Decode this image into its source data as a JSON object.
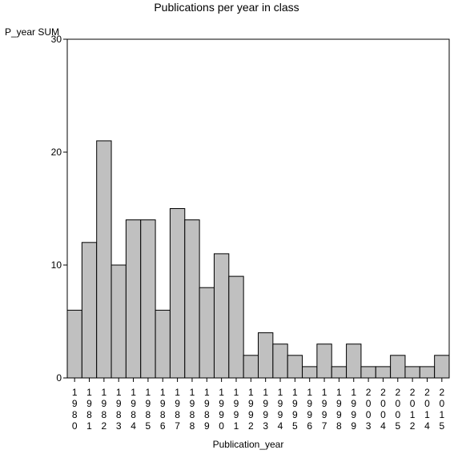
{
  "chart_data": {
    "type": "bar",
    "title": "Publications per year in class",
    "xlabel": "Publication_year",
    "ylabel": "P_year SUM",
    "ylim": [
      0,
      30
    ],
    "yticks": [
      0,
      10,
      20,
      30
    ],
    "grid": false,
    "categories": [
      "1980",
      "1981",
      "1982",
      "1983",
      "1984",
      "1985",
      "1986",
      "1987",
      "1988",
      "1989",
      "1990",
      "1991",
      "1992",
      "1993",
      "1994",
      "1995",
      "1996",
      "1997",
      "1998",
      "1999",
      "2003",
      "2004",
      "2005",
      "2012",
      "2014",
      "2015"
    ],
    "values": [
      6,
      12,
      21,
      10,
      14,
      14,
      6,
      15,
      14,
      8,
      11,
      9,
      2,
      4,
      3,
      2,
      1,
      3,
      1,
      3,
      1,
      1,
      2,
      1,
      1,
      2
    ],
    "bar_color": "#c0c0c0",
    "bar_edge_color": "#000000"
  }
}
